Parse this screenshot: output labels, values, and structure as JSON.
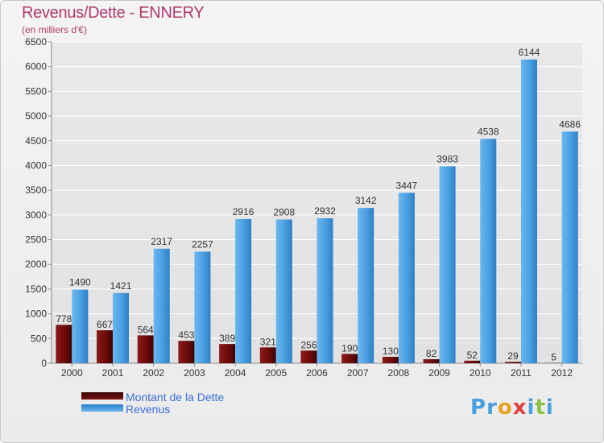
{
  "title": "Revenus/Dette - ENNERY",
  "subtitle": "(en milliers d'€)",
  "brand": "Proxiti",
  "colors": {
    "dette": "#6b0a0a",
    "revenus": "#4a9fe0",
    "title": "#b03a6a",
    "legend_text": "#3a6fd8",
    "grid": "#ffffff"
  },
  "chart_data": {
    "type": "bar",
    "categories": [
      "2000",
      "2001",
      "2002",
      "2003",
      "2004",
      "2005",
      "2006",
      "2007",
      "2008",
      "2009",
      "2010",
      "2011",
      "2012"
    ],
    "series": [
      {
        "name": "Montant de la Dette",
        "values": [
          778,
          667,
          564,
          453,
          389,
          321,
          256,
          190,
          130,
          82,
          52,
          29,
          5
        ]
      },
      {
        "name": "Revenus",
        "values": [
          1490,
          1421,
          2317,
          2257,
          2916,
          2908,
          2932,
          3142,
          3447,
          3983,
          4538,
          6144,
          4686
        ]
      }
    ],
    "ylim": [
      0,
      6500
    ],
    "yticks": [
      0,
      500,
      1000,
      1500,
      2000,
      2500,
      3000,
      3500,
      4000,
      4500,
      5000,
      5500,
      6000,
      6500
    ],
    "grid": true,
    "legend_position": "bottom-left"
  }
}
